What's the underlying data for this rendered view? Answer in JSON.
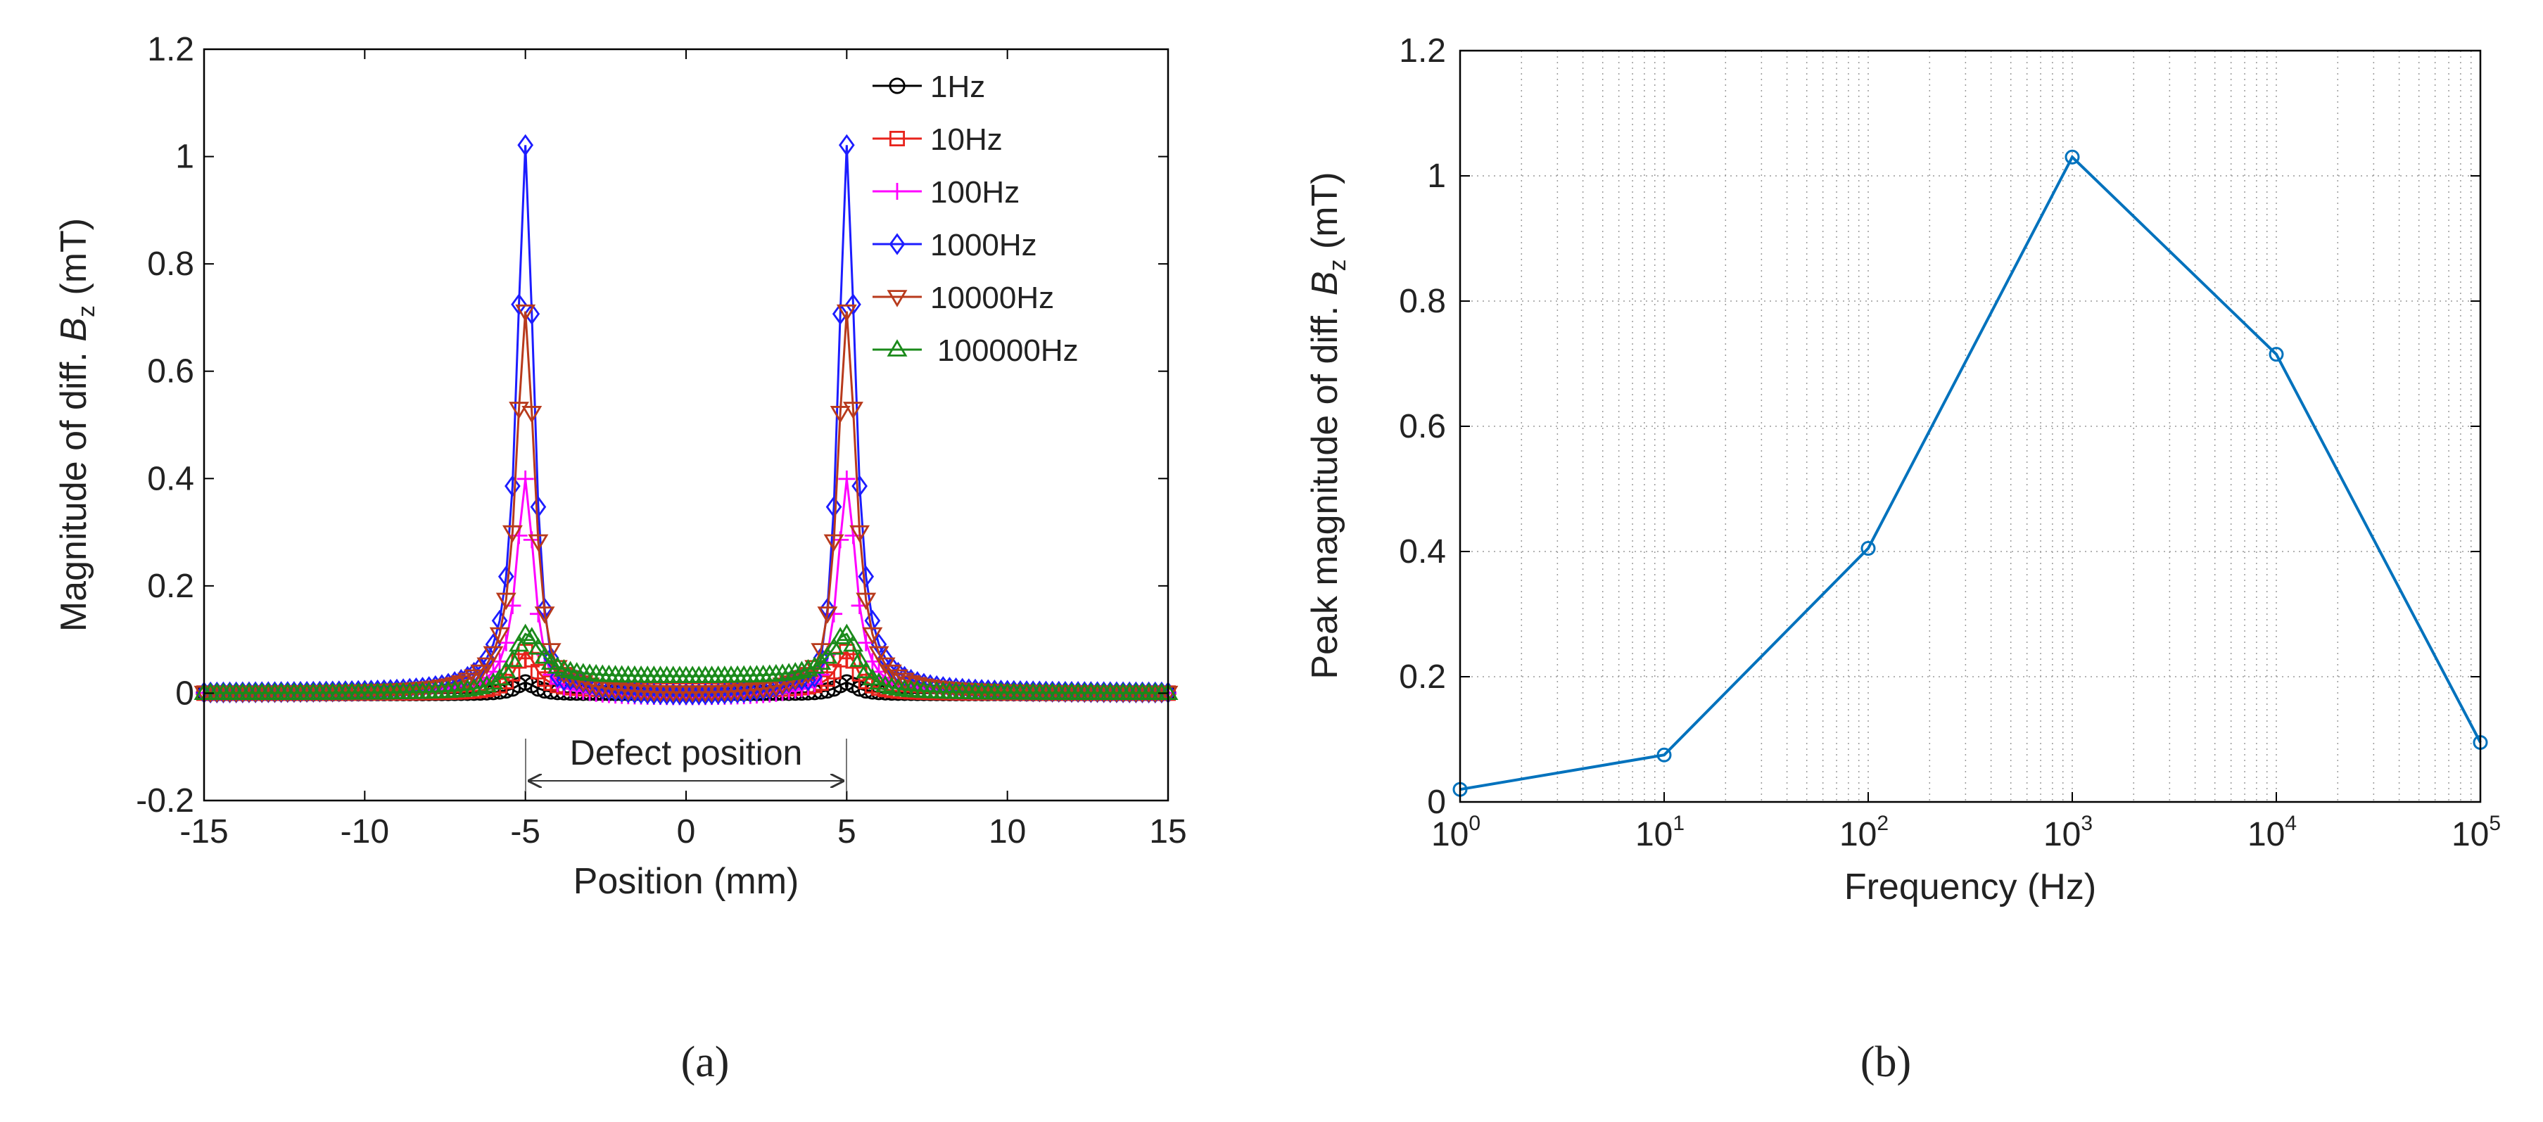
{
  "chart_data": [
    {
      "type": "line",
      "xlabel": "Position (mm)",
      "ylabel_prefix": "Magnitude of diff. ",
      "ylabel_var": "B",
      "ylabel_sub": "z",
      "ylabel_unit": " (mT)",
      "xlim": [
        -15,
        15
      ],
      "ylim": [
        -0.2,
        1.2
      ],
      "xticks": [
        -15,
        -10,
        -5,
        0,
        5,
        10,
        15
      ],
      "yticks": [
        -0.2,
        0,
        0.2,
        0.4,
        0.6,
        0.8,
        1,
        1.2
      ],
      "xtick_labels": [
        "-15",
        "-10",
        "-5",
        "0",
        "5",
        "10",
        "15"
      ],
      "ytick_labels": [
        "-0.2",
        "0",
        "0.2",
        "0.4",
        "0.6",
        "0.8",
        "1",
        "1.2"
      ],
      "grid": false,
      "legend_position": "top-right",
      "annotation": {
        "text": "Defect position",
        "from": -5,
        "to": 5
      },
      "caption": "(a)",
      "series": [
        {
          "name": "1Hz",
          "color": "#000000",
          "marker": "circle",
          "peak": 0.02,
          "dip": 0.0,
          "plateau": 0.0,
          "width": 0.35
        },
        {
          "name": "10Hz",
          "color": "#e8231c",
          "marker": "square",
          "peak": 0.075,
          "dip": 0.0,
          "plateau": 0.005,
          "width": 0.38
        },
        {
          "name": "100Hz",
          "color": "#ff00ff",
          "marker": "plus",
          "peak": 0.405,
          "dip": -0.015,
          "plateau": -0.01,
          "width": 0.33
        },
        {
          "name": "1000Hz",
          "color": "#1c1cff",
          "marker": "diamond",
          "peak": 1.03,
          "dip": -0.06,
          "plateau": -0.01,
          "width": 0.31
        },
        {
          "name": "10000Hz",
          "color": "#b83a1c",
          "marker": "triangle-down",
          "peak": 0.715,
          "dip": -0.025,
          "plateau": -0.005,
          "width": 0.34
        },
        {
          "name": "100000Hz",
          "color": "#1a8a1a",
          "marker": "triangle-up",
          "peak": 0.095,
          "dip": 0.0,
          "plateau": 0.03,
          "width": 0.5
        }
      ]
    },
    {
      "type": "line",
      "xscale": "log",
      "xlabel": "Frequency (Hz)",
      "ylabel_prefix": "Peak magnitude of diff. ",
      "ylabel_var": "B",
      "ylabel_sub": "z",
      "ylabel_unit": " (mT)",
      "xlim": [
        1,
        100000
      ],
      "ylim": [
        0,
        1.2
      ],
      "xtick_base": "10",
      "xtick_exponents": [
        "0",
        "1",
        "2",
        "3",
        "4",
        "5"
      ],
      "ytick_labels": [
        "0",
        "0.2",
        "0.4",
        "0.6",
        "0.8",
        "1",
        "1.2"
      ],
      "grid": true,
      "caption": "(b)",
      "series": [
        {
          "name": "Peak magnitude",
          "color": "#0072bd",
          "marker": "circle",
          "x": [
            1,
            10,
            100,
            1000,
            10000,
            100000
          ],
          "y": [
            0.02,
            0.075,
            0.405,
            1.03,
            0.715,
            0.095
          ]
        }
      ]
    }
  ]
}
